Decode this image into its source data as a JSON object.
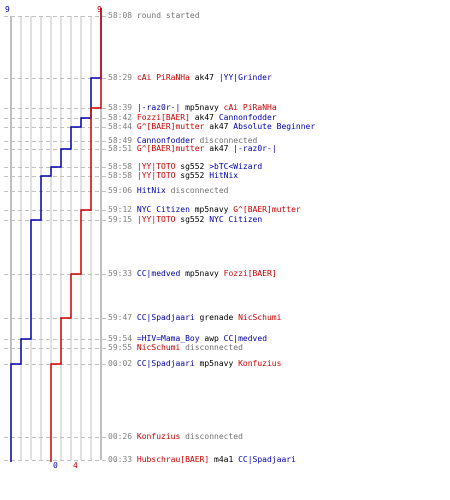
{
  "colors": {
    "red_team": "#cc0000",
    "blue_team": "#0000aa",
    "grid": "#c0c0c0",
    "axis": "#808080",
    "time": "#808080",
    "neutral": "#707070"
  },
  "counts": {
    "blue_start": "9",
    "red_start": "9",
    "blue_end": "0",
    "red_end": "4"
  },
  "events": [
    {
      "time": "58:08",
      "parts": [
        {
          "t": "round started",
          "c": "gray"
        }
      ]
    },
    {
      "time": "58:29",
      "parts": [
        {
          "t": "cAi PiRaNHa",
          "c": "red"
        },
        {
          "t": "ak47",
          "c": "dark"
        },
        {
          "t": "|YY|Grinder",
          "c": "blue"
        }
      ]
    },
    {
      "time": "58:39",
      "parts": [
        {
          "t": "|-raz0r-|",
          "c": "blue"
        },
        {
          "t": "mp5navy",
          "c": "dark"
        },
        {
          "t": "cAi PiRaNHa",
          "c": "red"
        }
      ]
    },
    {
      "time": "58:42",
      "parts": [
        {
          "t": "Fozzi[BAER]",
          "c": "red"
        },
        {
          "t": "ak47",
          "c": "dark"
        },
        {
          "t": "Cannonfodder",
          "c": "blue"
        }
      ]
    },
    {
      "time": "58:44",
      "parts": [
        {
          "t": "G^[BAER]mutter",
          "c": "red"
        },
        {
          "t": "ak47",
          "c": "dark"
        },
        {
          "t": "Absolute Beginner",
          "c": "blue"
        }
      ]
    },
    {
      "time": "58:49",
      "parts": [
        {
          "t": "Cannonfodder",
          "c": "blue"
        },
        {
          "t": "disconnected",
          "c": "gray"
        }
      ]
    },
    {
      "time": "58:51",
      "parts": [
        {
          "t": "G^[BAER]mutter",
          "c": "red"
        },
        {
          "t": "ak47",
          "c": "dark"
        },
        {
          "t": "|-raz0r-|",
          "c": "blue"
        }
      ]
    },
    {
      "time": "58:58",
      "parts": [
        {
          "t": "|YY|TOTO",
          "c": "red"
        },
        {
          "t": "sg552",
          "c": "dark"
        },
        {
          "t": ">bTC<Wizard",
          "c": "blue"
        }
      ]
    },
    {
      "time": "58:58",
      "parts": [
        {
          "t": "|YY|TOTO",
          "c": "red"
        },
        {
          "t": "sg552",
          "c": "dark"
        },
        {
          "t": "HitNix",
          "c": "blue"
        }
      ]
    },
    {
      "time": "59:06",
      "parts": [
        {
          "t": "HitNix",
          "c": "blue"
        },
        {
          "t": "disconnected",
          "c": "gray"
        }
      ]
    },
    {
      "time": "59:12",
      "parts": [
        {
          "t": "NYC Citizen",
          "c": "blue"
        },
        {
          "t": "mp5navy",
          "c": "dark"
        },
        {
          "t": "G^[BAER]mutter",
          "c": "red"
        }
      ]
    },
    {
      "time": "59:15",
      "parts": [
        {
          "t": "|YY|TOTO",
          "c": "red"
        },
        {
          "t": "sg552",
          "c": "dark"
        },
        {
          "t": "NYC Citizen",
          "c": "blue"
        }
      ]
    },
    {
      "time": "59:33",
      "parts": [
        {
          "t": "CC|medved",
          "c": "blue"
        },
        {
          "t": "mp5navy",
          "c": "dark"
        },
        {
          "t": "Fozzi[BAER]",
          "c": "red"
        }
      ]
    },
    {
      "time": "59:47",
      "parts": [
        {
          "t": "CC|Spadjaari",
          "c": "blue"
        },
        {
          "t": "grenade",
          "c": "dark"
        },
        {
          "t": "NicSchumi",
          "c": "red"
        }
      ]
    },
    {
      "time": "59:54",
      "parts": [
        {
          "t": "=HIV=Mama_Boy",
          "c": "blue"
        },
        {
          "t": "awp",
          "c": "dark"
        },
        {
          "t": "CC|medved",
          "c": "blue"
        }
      ]
    },
    {
      "time": "59:55",
      "parts": [
        {
          "t": "NicSchumi",
          "c": "red"
        },
        {
          "t": "disconnected",
          "c": "gray"
        }
      ]
    },
    {
      "time": "00:02",
      "parts": [
        {
          "t": "CC|Spadjaari",
          "c": "blue"
        },
        {
          "t": "mp5navy",
          "c": "dark"
        },
        {
          "t": "Konfuzius",
          "c": "red"
        }
      ]
    },
    {
      "time": "00:26",
      "parts": [
        {
          "t": "Konfuzius",
          "c": "red"
        },
        {
          "t": "disconnected",
          "c": "gray"
        }
      ]
    },
    {
      "time": "00:33",
      "parts": [
        {
          "t": "Hubschrau[BAER]",
          "c": "red"
        },
        {
          "t": "m4a1",
          "c": "dark"
        },
        {
          "t": "CC|Spadjaari",
          "c": "blue"
        }
      ]
    }
  ],
  "chart_data": {
    "type": "line",
    "series": [
      {
        "values": [
          9,
          8,
          8,
          7,
          6,
          6,
          5,
          4,
          3,
          3,
          3,
          2,
          2,
          2,
          1,
          1,
          0,
          0,
          0
        ]
      },
      {
        "values": [
          9,
          9,
          8,
          8,
          8,
          8,
          8,
          8,
          8,
          8,
          7,
          7,
          6,
          5,
          5,
          5,
          4,
          4,
          4
        ]
      }
    ],
    "ylim": [
      0,
      9
    ]
  }
}
